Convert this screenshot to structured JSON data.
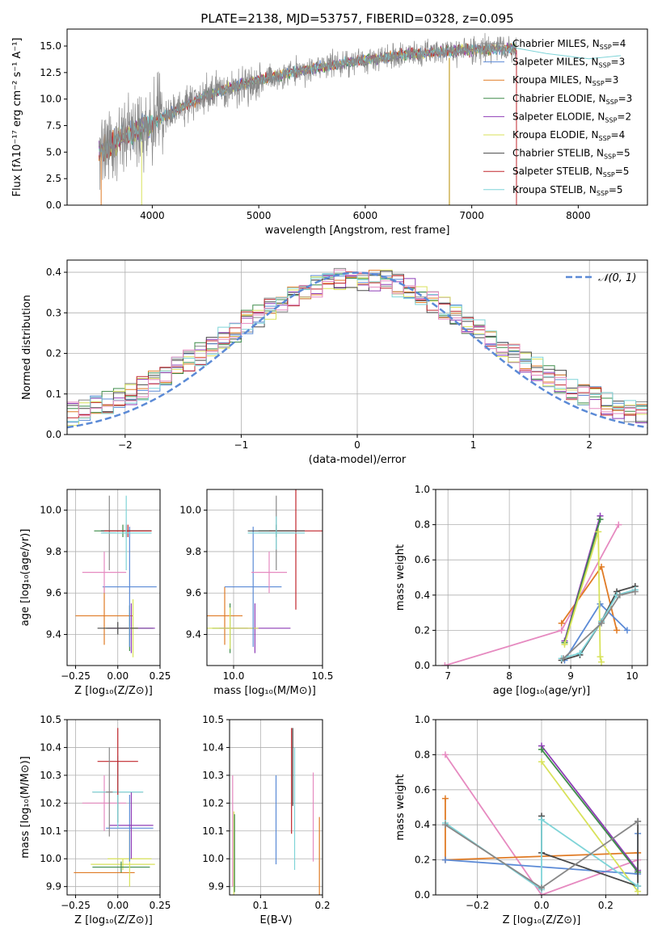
{
  "figure": {
    "title": "PLATE=2138, MJD=53757, FIBERID=0328, z=0.095"
  },
  "colors": {
    "chabrier_miles": "#888888",
    "salpeter_miles": "#5b8ad6",
    "kroupa_miles": "#e07b25",
    "chabrier_elodie": "#3e8c4a",
    "salpeter_elodie": "#8e3cb6",
    "kroupa_elodie": "#d8e25a",
    "chabrier_stelib": "#4a4a4a",
    "salpeter_stelib": "#c1272d",
    "kroupa_stelib": "#7fd4d8",
    "pink": "#e68ac0",
    "gaussian": "#5b8ad6"
  },
  "chart_data": [
    {
      "id": "spectrum",
      "type": "line",
      "xlabel": "wavelength [Angstrom, rest frame]",
      "ylabel": "Flux [fλ10⁻¹⁷ erg cm⁻² s⁻¹ A⁻¹]",
      "xlim": [
        3200,
        8650
      ],
      "ylim": [
        0,
        16.6
      ],
      "xticks": [
        "4000",
        "5000",
        "6000",
        "7000",
        "8000"
      ],
      "yticks": [
        "0.0",
        "2.5",
        "5.0",
        "7.5",
        "10.0",
        "12.5",
        "15.0"
      ],
      "continuum": {
        "x": [
          3500,
          3700,
          3900,
          4100,
          4300,
          4500,
          4800,
          5100,
          5400,
          5700,
          6000,
          6300,
          6600,
          6900,
          7200,
          7420
        ],
        "y": [
          4.8,
          6.2,
          7.3,
          8.3,
          9.4,
          10.3,
          11.3,
          12.0,
          12.7,
          13.2,
          13.7,
          14.1,
          14.4,
          14.6,
          14.7,
          14.8
        ]
      },
      "legend": [
        "Chabrier MILES, N_SSP=4",
        "Salpeter MILES, N_SSP=3",
        "Kroupa MILES, N_SSP=3",
        "Chabrier ELODIE, N_SSP=3",
        "Salpeter ELODIE, N_SSP=2",
        "Kroupa ELODIE, N_SSP=4",
        "Chabrier STELIB, N_SSP=5",
        "Salpeter STELIB, N_SSP=5",
        "Kroupa STELIB, N_SSP=5"
      ]
    },
    {
      "id": "residuals",
      "type": "line",
      "xlabel": "(data-model)/error",
      "ylabel": "Normed distribution",
      "xlim": [
        -2.5,
        2.5
      ],
      "ylim": [
        0,
        0.43
      ],
      "xticks": [
        "−2",
        "−1",
        "0",
        "1",
        "2"
      ],
      "yticks": [
        "0.0",
        "0.1",
        "0.2",
        "0.3",
        "0.4"
      ],
      "legend": [
        "𝒩(0, 1)"
      ]
    },
    {
      "id": "age-vs-z",
      "type": "scatter",
      "xlabel": "Z [log₁₀(Z/Z⊙)]",
      "ylabel": "age  [log₁₀(age/yr)]",
      "xlim": [
        -0.3,
        0.25
      ],
      "ylim": [
        9.25,
        10.1
      ],
      "xticks": [
        "−0.25",
        "0.00",
        "0.25"
      ],
      "yticks": [
        "9.4",
        "9.6",
        "9.8",
        "10.0"
      ],
      "points": [
        {
          "x": -0.08,
          "xe": 0.17,
          "y": 9.49,
          "ye": 0.14,
          "c": "kroupa_miles"
        },
        {
          "x": 0.07,
          "xe": 0.14,
          "y": 9.43,
          "ye": 0.11,
          "c": "chabrier_elodie"
        },
        {
          "x": 0.08,
          "xe": 0.14,
          "y": 9.43,
          "ye": 0.12,
          "c": "salpeter_elodie"
        },
        {
          "x": 0.09,
          "xe": 0.03,
          "y": 9.43,
          "ye": 0.14,
          "c": "kroupa_elodie"
        },
        {
          "x": 0.0,
          "xe": 0.12,
          "y": 9.43,
          "ye": 0.03,
          "c": "chabrier_stelib"
        },
        {
          "x": 0.07,
          "xe": 0.16,
          "y": 9.63,
          "ye": 0.29,
          "c": "salpeter_miles"
        },
        {
          "x": -0.08,
          "xe": 0.13,
          "y": 9.7,
          "ye": 0.1,
          "c": "pink"
        },
        {
          "x": -0.05,
          "xe": 0.04,
          "y": 9.89,
          "ye": 0.18,
          "c": "chabrier_miles"
        },
        {
          "x": 0.03,
          "xe": 0.17,
          "y": 9.9,
          "ye": 0.03,
          "c": "chabrier_elodie"
        },
        {
          "x": 0.05,
          "xe": 0.15,
          "y": 9.9,
          "ye": 0.03,
          "c": "chabrier_stelib"
        },
        {
          "x": 0.06,
          "xe": 0.14,
          "y": 9.9,
          "ye": 0.03,
          "c": "salpeter_stelib"
        },
        {
          "x": 0.05,
          "xe": 0.15,
          "y": 9.89,
          "ye": 0.18,
          "c": "kroupa_stelib"
        }
      ]
    },
    {
      "id": "age-vs-mass",
      "type": "scatter",
      "xlabel": "mass [log₁₀(M/M⊙)]",
      "ylabel": "",
      "xlim": [
        9.85,
        10.5
      ],
      "ylim": [
        9.25,
        10.1
      ],
      "xticks": [
        "10.0",
        "10.5"
      ],
      "yticks": [
        "9.4",
        "9.6",
        "9.8",
        "10.0"
      ],
      "points": [
        {
          "x": 9.95,
          "xe": 0.1,
          "y": 9.49,
          "ye": 0.14,
          "c": "kroupa_miles"
        },
        {
          "x": 9.98,
          "xe": 0.1,
          "y": 9.43,
          "ye": 0.12,
          "c": "chabrier_elodie"
        },
        {
          "x": 10.12,
          "xe": 0.2,
          "y": 9.43,
          "ye": 0.12,
          "c": "salpeter_elodie"
        },
        {
          "x": 9.98,
          "xe": 0.16,
          "y": 9.43,
          "ye": 0.1,
          "c": "kroupa_elodie"
        },
        {
          "x": 10.11,
          "xe": 0.16,
          "y": 9.63,
          "ye": 0.29,
          "c": "salpeter_miles"
        },
        {
          "x": 10.2,
          "xe": 0.1,
          "y": 9.7,
          "ye": 0.1,
          "c": "pink"
        },
        {
          "x": 10.24,
          "xe": 0.1,
          "y": 9.89,
          "ye": 0.18,
          "c": "chabrier_miles"
        },
        {
          "x": 10.24,
          "xe": 0.1,
          "y": 9.9,
          "ye": 0.03,
          "c": "chabrier_elodie"
        },
        {
          "x": 10.35,
          "xe": 0.15,
          "y": 9.9,
          "ye": 0.38,
          "c": "salpeter_stelib"
        },
        {
          "x": 10.24,
          "xe": 0.16,
          "y": 9.9,
          "ye": 0.03,
          "c": "chabrier_stelib"
        },
        {
          "x": 10.24,
          "xe": 0.16,
          "y": 9.89,
          "ye": 0.08,
          "c": "kroupa_stelib"
        }
      ]
    },
    {
      "id": "weight-vs-age",
      "type": "line",
      "xlabel": "age  [log₁₀(age/yr)]",
      "ylabel": "mass weight",
      "xlim": [
        6.8,
        10.25
      ],
      "ylim": [
        0,
        1.0
      ],
      "xticks": [
        "7",
        "8",
        "9",
        "10"
      ],
      "yticks": [
        "0.0",
        "0.2",
        "0.4",
        "0.6",
        "0.8",
        "1.0"
      ],
      "series": [
        {
          "c": "pink",
          "x": [
            6.95,
            8.85,
            9.78
          ],
          "y": [
            0.0,
            0.2,
            0.8
          ]
        },
        {
          "c": "kroupa_miles",
          "x": [
            8.85,
            9.5,
            9.75
          ],
          "y": [
            0.24,
            0.56,
            0.2
          ]
        },
        {
          "c": "salpeter_miles",
          "x": [
            8.9,
            9.48,
            9.92
          ],
          "y": [
            0.03,
            0.35,
            0.2
          ]
        },
        {
          "c": "salpeter_elodie",
          "x": [
            8.9,
            9.48
          ],
          "y": [
            0.14,
            0.85
          ]
        },
        {
          "c": "chabrier_elodie",
          "x": [
            8.9,
            9.48
          ],
          "y": [
            0.13,
            0.83
          ]
        },
        {
          "c": "kroupa_elodie",
          "x": [
            8.9,
            9.45,
            9.48,
            9.5
          ],
          "y": [
            0.12,
            0.76,
            0.05,
            0.02
          ]
        },
        {
          "c": "chabrier_stelib",
          "x": [
            8.85,
            9.15,
            9.5,
            9.75,
            10.05
          ],
          "y": [
            0.03,
            0.06,
            0.25,
            0.42,
            0.45
          ]
        },
        {
          "c": "kroupa_stelib",
          "x": [
            8.85,
            9.15,
            9.5,
            9.75,
            10.05
          ],
          "y": [
            0.04,
            0.07,
            0.25,
            0.4,
            0.43
          ]
        },
        {
          "c": "chabrier_miles",
          "x": [
            8.88,
            9.5,
            9.8,
            10.05
          ],
          "y": [
            0.04,
            0.24,
            0.4,
            0.42
          ]
        }
      ]
    },
    {
      "id": "mass-vs-z",
      "type": "scatter",
      "xlabel": "Z [log₁₀(Z/Z⊙)]",
      "ylabel": "mass [log₁₀(M/M⊙)]",
      "xlim": [
        -0.3,
        0.25
      ],
      "ylim": [
        9.87,
        10.5
      ],
      "xticks": [
        "−0.25",
        "0.00",
        "0.25"
      ],
      "yticks": [
        "9.9",
        "10.0",
        "10.1",
        "10.2",
        "10.3",
        "10.4",
        "10.5"
      ],
      "points": [
        {
          "x": -0.08,
          "xe": 0.18,
          "y": 9.95,
          "ye": 0.0,
          "c": "kroupa_miles"
        },
        {
          "x": 0.03,
          "xe": 0.19,
          "y": 9.98,
          "ye": 0.02,
          "c": "kroupa_elodie"
        },
        {
          "x": 0.02,
          "xe": 0.17,
          "y": 9.97,
          "ye": 0.02,
          "c": "chabrier_elodie"
        },
        {
          "x": 0.07,
          "xe": 0.13,
          "y": 10.0,
          "ye": 0.1,
          "c": "kroupa_elodie"
        },
        {
          "x": 0.07,
          "xe": 0.14,
          "y": 10.11,
          "ye": 0.12,
          "c": "salpeter_miles"
        },
        {
          "x": 0.08,
          "xe": 0.13,
          "y": 10.12,
          "ye": 0.12,
          "c": "salpeter_elodie"
        },
        {
          "x": -0.08,
          "xe": 0.13,
          "y": 10.2,
          "ye": 0.1,
          "c": "pink"
        },
        {
          "x": 0.0,
          "xe": 0.15,
          "y": 10.24,
          "ye": 0.11,
          "c": "chabrier_stelib"
        },
        {
          "x": 0.0,
          "xe": 0.15,
          "y": 10.24,
          "ye": 0.13,
          "c": "kroupa_stelib"
        },
        {
          "x": 0.0,
          "xe": 0.12,
          "y": 10.35,
          "ye": 0.12,
          "c": "salpeter_stelib"
        },
        {
          "x": -0.05,
          "xe": 0.02,
          "y": 10.24,
          "ye": 0.16,
          "c": "chabrier_miles"
        }
      ]
    },
    {
      "id": "mass-vs-ebv",
      "type": "scatter",
      "xlabel": "E(B-V)",
      "ylabel": "",
      "xlim": [
        0.05,
        0.2
      ],
      "ylim": [
        9.87,
        10.5
      ],
      "xticks": [
        "0.1",
        "0.2"
      ],
      "yticks": [
        "9.9",
        "10.0",
        "10.1",
        "10.2",
        "10.3",
        "10.4",
        "10.5"
      ],
      "points": [
        {
          "x": 0.055,
          "y": 10.1,
          "ye": 0.2,
          "c": "pink"
        },
        {
          "x": 0.057,
          "y": 10.02,
          "ye": 0.15,
          "c": "kroupa_elodie"
        },
        {
          "x": 0.058,
          "y": 10.02,
          "ye": 0.14,
          "c": "chabrier_elodie"
        },
        {
          "x": 0.125,
          "y": 10.14,
          "ye": 0.16,
          "c": "salpeter_miles"
        },
        {
          "x": 0.15,
          "y": 10.28,
          "ye": 0.19,
          "c": "salpeter_stelib"
        },
        {
          "x": 0.152,
          "y": 10.33,
          "ye": 0.14,
          "c": "chabrier_stelib"
        },
        {
          "x": 0.155,
          "y": 10.18,
          "ye": 0.22,
          "c": "kroupa_stelib"
        },
        {
          "x": 0.185,
          "y": 10.15,
          "ye": 0.16,
          "c": "pink"
        },
        {
          "x": 0.195,
          "y": 10.0,
          "ye": 0.15,
          "c": "kroupa_miles"
        }
      ]
    },
    {
      "id": "weight-vs-z",
      "type": "line",
      "xlabel": "Z [log₁₀(Z/Z⊙)]",
      "ylabel": "mass weight",
      "xlim": [
        -0.33,
        0.33
      ],
      "ylim": [
        0,
        1.0
      ],
      "xticks": [
        "−0.2",
        "0.0",
        "0.2"
      ],
      "yticks": [
        "0.0",
        "0.2",
        "0.4",
        "0.6",
        "0.8",
        "1.0"
      ],
      "series": [
        {
          "c": "pink",
          "x": [
            -0.3,
            0.0,
            0.3
          ],
          "y": [
            0.8,
            0.0,
            0.2
          ]
        },
        {
          "c": "kroupa_miles",
          "x": [
            -0.3,
            -0.3,
            0.3,
            0.3
          ],
          "y": [
            0.55,
            0.2,
            0.24,
            0.24
          ]
        },
        {
          "c": "salpeter_miles",
          "x": [
            -0.3,
            0.3,
            0.3
          ],
          "y": [
            0.2,
            0.12,
            0.35
          ]
        },
        {
          "c": "salpeter_elodie",
          "x": [
            0.0,
            0.3
          ],
          "y": [
            0.85,
            0.14
          ]
        },
        {
          "c": "chabrier_elodie",
          "x": [
            0.0,
            0.3
          ],
          "y": [
            0.83,
            0.13
          ]
        },
        {
          "c": "kroupa_elodie",
          "x": [
            0.0,
            0.3
          ],
          "y": [
            0.76,
            0.02
          ]
        },
        {
          "c": "chabrier_stelib",
          "x": [
            0.0,
            0.0,
            0.3,
            0.3
          ],
          "y": [
            0.45,
            0.24,
            0.05,
            0.42
          ]
        },
        {
          "c": "kroupa_stelib",
          "x": [
            -0.3,
            0.0,
            0.0,
            0.3
          ],
          "y": [
            0.41,
            0.03,
            0.43,
            0.05
          ]
        },
        {
          "c": "chabrier_miles",
          "x": [
            -0.3,
            0.0,
            0.3
          ],
          "y": [
            0.4,
            0.04,
            0.42
          ]
        }
      ]
    }
  ]
}
